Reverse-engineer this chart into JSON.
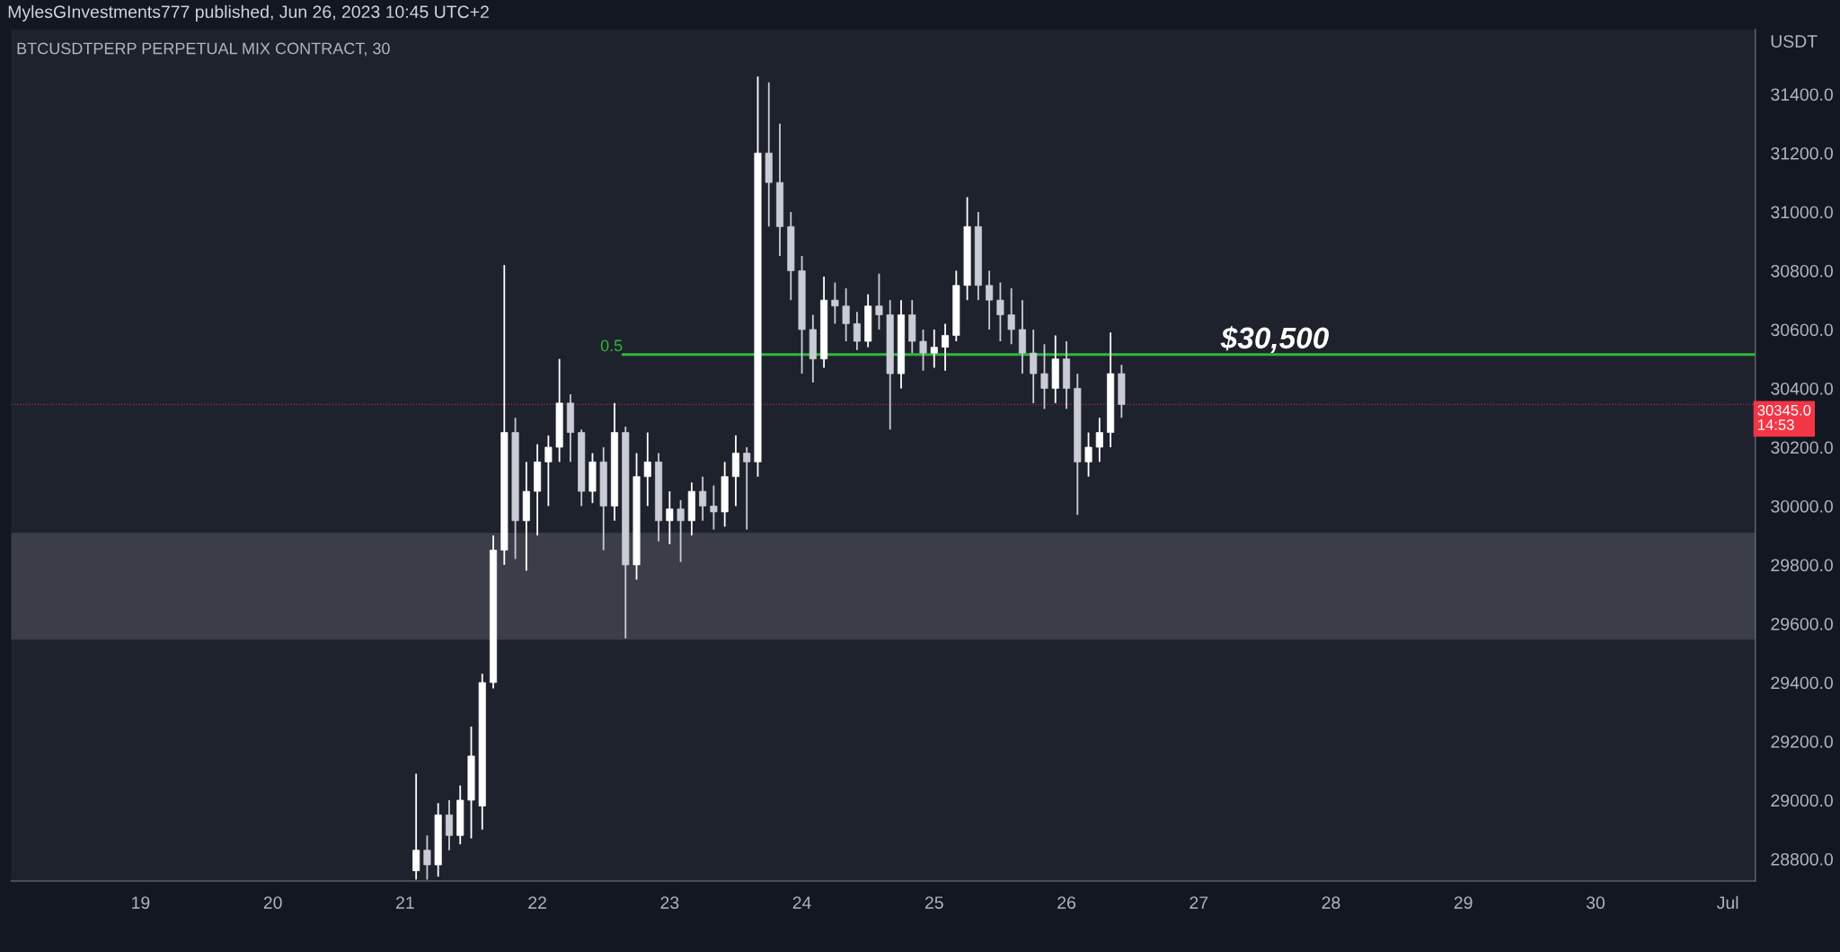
{
  "chart_data": {
    "type": "candlestick",
    "title": "MylesGInvestments777 published, Jun 26, 2023 10:45 UTC+2",
    "subtitle": "BTCUSDTPERP PERPETUAL MIX CONTRACT, 30",
    "ylabel": "USDT",
    "colors": [
      "#ffffff",
      "#c9ccd4",
      "#ffffff",
      "#c9ccd4",
      "#ffffff",
      "#ffffff",
      "#ffffff",
      "#ffffff",
      "#ffffff",
      "#c9ccd4",
      "#ffffff",
      "#ffffff",
      "#ffffff",
      "#ffffff",
      "#c9ccd4",
      "#c9ccd4",
      "#ffffff",
      "#c9ccd4",
      "#ffffff",
      "#c9ccd4",
      "#ffffff",
      "#ffffff",
      "#c9ccd4",
      "#ffffff",
      "#c9ccd4",
      "#ffffff",
      "#c9ccd4",
      "#c9ccd4",
      "#ffffff",
      "#ffffff",
      "#c9ccd4",
      "#ffffff",
      "#c9ccd4",
      "#c9ccd4",
      "#c9ccd4",
      "#c9ccd4",
      "#c9ccd4",
      "#ffffff",
      "#c9ccd4",
      "#c9ccd4",
      "#c9ccd4",
      "#ffffff",
      "#c9ccd4",
      "#c9ccd4",
      "#ffffff",
      "#c9ccd4",
      "#c9ccd4",
      "#ffffff",
      "#ffffff",
      "#ffffff",
      "#ffffff",
      "#c9ccd4",
      "#c9ccd4",
      "#c9ccd4",
      "#c9ccd4",
      "#c9ccd4",
      "#c9ccd4",
      "#c9ccd4",
      "#ffffff",
      "#c9ccd4",
      "#c9ccd4",
      "#ffffff",
      "#ffffff",
      "#ffffff",
      "#c9ccd4"
    ],
    "x": [
      "2023-06-21T02:00",
      "2023-06-21T04:00",
      "2023-06-21T06:00",
      "2023-06-21T08:00",
      "2023-06-21T10:00",
      "2023-06-21T12:00",
      "2023-06-21T14:00",
      "2023-06-21T16:00",
      "2023-06-21T18:00",
      "2023-06-21T20:00",
      "2023-06-21T22:00",
      "2023-06-22T00:00",
      "2023-06-22T02:00",
      "2023-06-22T04:00",
      "2023-06-22T06:00",
      "2023-06-22T08:00",
      "2023-06-22T10:00",
      "2023-06-22T12:00",
      "2023-06-22T14:00",
      "2023-06-22T16:00",
      "2023-06-22T18:00",
      "2023-06-22T20:00",
      "2023-06-22T22:00",
      "2023-06-23T00:00",
      "2023-06-23T02:00",
      "2023-06-23T04:00",
      "2023-06-23T06:00",
      "2023-06-23T08:00",
      "2023-06-23T10:00",
      "2023-06-23T12:00",
      "2023-06-23T14:00",
      "2023-06-23T16:00",
      "2023-06-23T18:00",
      "2023-06-23T20:00",
      "2023-06-23T22:00",
      "2023-06-24T00:00",
      "2023-06-24T02:00",
      "2023-06-24T04:00",
      "2023-06-24T06:00",
      "2023-06-24T08:00",
      "2023-06-24T10:00",
      "2023-06-24T12:00",
      "2023-06-24T14:00",
      "2023-06-24T16:00",
      "2023-06-24T18:00",
      "2023-06-24T20:00",
      "2023-06-24T22:00",
      "2023-06-25T00:00",
      "2023-06-25T02:00",
      "2023-06-25T04:00",
      "2023-06-25T06:00",
      "2023-06-25T08:00",
      "2023-06-25T10:00",
      "2023-06-25T12:00",
      "2023-06-25T14:00",
      "2023-06-25T16:00",
      "2023-06-25T18:00",
      "2023-06-25T20:00",
      "2023-06-25T22:00",
      "2023-06-26T00:00",
      "2023-06-26T02:00",
      "2023-06-26T04:00",
      "2023-06-26T06:00",
      "2023-06-26T08:00",
      "2023-06-26T10:00"
    ],
    "ohlc": [
      [
        28760,
        29090,
        28730,
        28830
      ],
      [
        28830,
        28880,
        28730,
        28780
      ],
      [
        28780,
        28990,
        28740,
        28950
      ],
      [
        28950,
        29000,
        28830,
        28880
      ],
      [
        28880,
        29050,
        28850,
        29000
      ],
      [
        29000,
        29250,
        28870,
        29150
      ],
      [
        28980,
        29430,
        28900,
        29400
      ],
      [
        29400,
        29900,
        29380,
        29850
      ],
      [
        29850,
        30820,
        29800,
        30250
      ],
      [
        30250,
        30300,
        29820,
        29950
      ],
      [
        29950,
        30150,
        29780,
        30050
      ],
      [
        30050,
        30210,
        29900,
        30150
      ],
      [
        30150,
        30240,
        30000,
        30200
      ],
      [
        30200,
        30500,
        30150,
        30350
      ],
      [
        30350,
        30380,
        30150,
        30250
      ],
      [
        30250,
        30260,
        30000,
        30050
      ],
      [
        30050,
        30180,
        30010,
        30150
      ],
      [
        30150,
        30200,
        29850,
        30000
      ],
      [
        30000,
        30350,
        29950,
        30250
      ],
      [
        30250,
        30270,
        29550,
        29800
      ],
      [
        29800,
        30180,
        29750,
        30100
      ],
      [
        30100,
        30250,
        30000,
        30150
      ],
      [
        30150,
        30180,
        29880,
        29950
      ],
      [
        29950,
        30050,
        29870,
        29990
      ],
      [
        29990,
        30020,
        29810,
        29950
      ],
      [
        29950,
        30080,
        29900,
        30050
      ],
      [
        30050,
        30100,
        29950,
        30000
      ],
      [
        30000,
        30070,
        29920,
        29980
      ],
      [
        29980,
        30150,
        29930,
        30100
      ],
      [
        30100,
        30240,
        30000,
        30180
      ],
      [
        30180,
        30200,
        29920,
        30150
      ],
      [
        30150,
        31460,
        30100,
        31200
      ],
      [
        31200,
        31440,
        30950,
        31100
      ],
      [
        31100,
        31300,
        30850,
        30950
      ],
      [
        30950,
        31000,
        30700,
        30800
      ],
      [
        30800,
        30850,
        30450,
        30600
      ],
      [
        30600,
        30650,
        30420,
        30500
      ],
      [
        30500,
        30780,
        30470,
        30700
      ],
      [
        30700,
        30760,
        30620,
        30680
      ],
      [
        30680,
        30740,
        30560,
        30620
      ],
      [
        30620,
        30660,
        30530,
        30560
      ],
      [
        30560,
        30720,
        30540,
        30680
      ],
      [
        30680,
        30790,
        30600,
        30650
      ],
      [
        30650,
        30700,
        30260,
        30450
      ],
      [
        30450,
        30700,
        30400,
        30650
      ],
      [
        30650,
        30700,
        30520,
        30560
      ],
      [
        30560,
        30600,
        30460,
        30520
      ],
      [
        30520,
        30600,
        30470,
        30540
      ],
      [
        30540,
        30620,
        30460,
        30580
      ],
      [
        30580,
        30800,
        30560,
        30750
      ],
      [
        30750,
        31050,
        30700,
        30950
      ],
      [
        30950,
        31000,
        30700,
        30750
      ],
      [
        30750,
        30800,
        30600,
        30700
      ],
      [
        30700,
        30760,
        30560,
        30650
      ],
      [
        30650,
        30740,
        30550,
        30600
      ],
      [
        30600,
        30700,
        30450,
        30520
      ],
      [
        30520,
        30600,
        30350,
        30450
      ],
      [
        30450,
        30550,
        30330,
        30400
      ],
      [
        30400,
        30580,
        30350,
        30500
      ],
      [
        30500,
        30560,
        30330,
        30400
      ],
      [
        30400,
        30450,
        29970,
        30150
      ],
      [
        30150,
        30250,
        30100,
        30200
      ],
      [
        30200,
        30300,
        30150,
        30250
      ],
      [
        30250,
        30590,
        30200,
        30450
      ],
      [
        30450,
        30480,
        30300,
        30345
      ]
    ],
    "series": [
      {
        "type": "line",
        "color": "#2fb83c",
        "x": [
          "2023-06-22T15:30",
          "2023-07-01T05:00"
        ],
        "values": [
          30515,
          30515
        ]
      }
    ],
    "bands": [
      {
        "axis": "y",
        "from": 29546,
        "to": 29909,
        "color": "#3b3e48"
      }
    ],
    "ref_lines": [
      {
        "axis": "y",
        "value": 30345,
        "label": "30345.0\n14:53",
        "color": "#f23645",
        "line_style": "dotted"
      }
    ],
    "annotations": [
      {
        "text": "0.5",
        "x": "2023-06-22T15:30",
        "y": 30515
      },
      {
        "text": "$30,500",
        "x": "2023-06-27T04:00",
        "y": 30515
      }
    ],
    "xlim": [
      "2023-06-18T00:30",
      "2023-07-01T05:00"
    ],
    "xticks": [
      {
        "value": "2023-06-19",
        "label": "19"
      },
      {
        "value": "2023-06-20",
        "label": "20"
      },
      {
        "value": "2023-06-21",
        "label": "21"
      },
      {
        "value": "2023-06-22",
        "label": "22"
      },
      {
        "value": "2023-06-23",
        "label": "23"
      },
      {
        "value": "2023-06-24",
        "label": "24"
      },
      {
        "value": "2023-06-25",
        "label": "25"
      },
      {
        "value": "2023-06-26",
        "label": "26"
      },
      {
        "value": "2023-06-27",
        "label": "27"
      },
      {
        "value": "2023-06-28",
        "label": "28"
      },
      {
        "value": "2023-06-29",
        "label": "29"
      },
      {
        "value": "2023-06-30",
        "label": "30"
      },
      {
        "value": "2023-07-01",
        "label": "Jul"
      }
    ],
    "ylim": [
      28725,
      31620
    ],
    "yticks": [
      {
        "value": 28800,
        "label": "28800.0"
      },
      {
        "value": 29000,
        "label": "29000.0"
      },
      {
        "value": 29200,
        "label": "29200.0"
      },
      {
        "value": 29400,
        "label": "29400.0"
      },
      {
        "value": 29600,
        "label": "29600.0"
      },
      {
        "value": 29800,
        "label": "29800.0"
      },
      {
        "value": 30000,
        "label": "30000.0"
      },
      {
        "value": 30200,
        "label": "30200.0"
      },
      {
        "value": 30400,
        "label": "30400.0"
      },
      {
        "value": 30600,
        "label": "30600.0"
      },
      {
        "value": 30800,
        "label": "30800.0"
      },
      {
        "value": 31000,
        "label": "31000.0"
      },
      {
        "value": 31200,
        "label": "31200.0"
      },
      {
        "value": 31400,
        "label": "31400.0"
      }
    ],
    "grid": false,
    "legend": false
  }
}
